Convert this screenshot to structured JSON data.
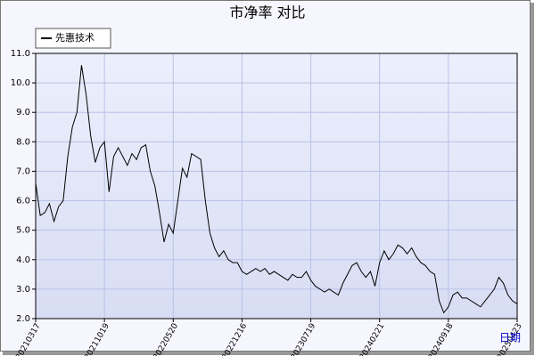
{
  "chart_data": {
    "type": "line",
    "title": "市净率  对比",
    "xlabel": "日期",
    "series": [
      {
        "name": "先惠技术",
        "color": "#000000",
        "values": [
          6.6,
          5.5,
          5.6,
          5.9,
          5.3,
          5.8,
          6.0,
          7.5,
          8.5,
          9.0,
          10.6,
          9.6,
          8.2,
          7.3,
          7.8,
          8.0,
          6.3,
          7.5,
          7.8,
          7.5,
          7.2,
          7.6,
          7.4,
          7.8,
          7.9,
          7.0,
          6.5,
          5.6,
          4.6,
          5.2,
          4.9,
          6.0,
          7.1,
          6.8,
          7.6,
          7.5,
          7.4,
          6.0,
          4.9,
          4.4,
          4.1,
          4.3,
          4.0,
          3.9,
          3.9,
          3.6,
          3.5,
          3.6,
          3.7,
          3.6,
          3.7,
          3.5,
          3.6,
          3.5,
          3.4,
          3.3,
          3.5,
          3.4,
          3.4,
          3.6,
          3.3,
          3.1,
          3.0,
          2.9,
          3.0,
          2.9,
          2.8,
          3.2,
          3.5,
          3.8,
          3.9,
          3.6,
          3.4,
          3.6,
          3.1,
          3.9,
          4.3,
          4.0,
          4.2,
          4.5,
          4.4,
          4.2,
          4.4,
          4.1,
          3.9,
          3.8,
          3.6,
          3.5,
          2.6,
          2.2,
          2.4,
          2.8,
          2.9,
          2.7,
          2.7,
          2.6,
          2.5,
          2.4,
          2.6,
          2.8,
          3.0,
          3.4,
          3.2,
          2.8,
          2.6,
          2.5
        ]
      }
    ],
    "xlim": [
      0,
      105
    ],
    "xticks": [
      {
        "value": 0,
        "label": "20210317"
      },
      {
        "value": 15,
        "label": "20211019"
      },
      {
        "value": 30,
        "label": "20220520"
      },
      {
        "value": 45,
        "label": "20221216"
      },
      {
        "value": 60,
        "label": "20230719"
      },
      {
        "value": 75,
        "label": "20240221"
      },
      {
        "value": 90,
        "label": "20240918"
      },
      {
        "value": 105,
        "label": "20250423"
      }
    ],
    "ylim": [
      2,
      11
    ],
    "yticks": [
      {
        "value": 2,
        "label": "2.0"
      },
      {
        "value": 3,
        "label": "3.0"
      },
      {
        "value": 4,
        "label": "4.0"
      },
      {
        "value": 5,
        "label": "5.0"
      },
      {
        "value": 6,
        "label": "6.0"
      },
      {
        "value": 7,
        "label": "7.0"
      },
      {
        "value": 8,
        "label": "8.0"
      },
      {
        "value": 9,
        "label": "9.0"
      },
      {
        "value": 10,
        "label": "10.0"
      },
      {
        "value": 11,
        "label": "11.0"
      }
    ],
    "grid": true
  }
}
